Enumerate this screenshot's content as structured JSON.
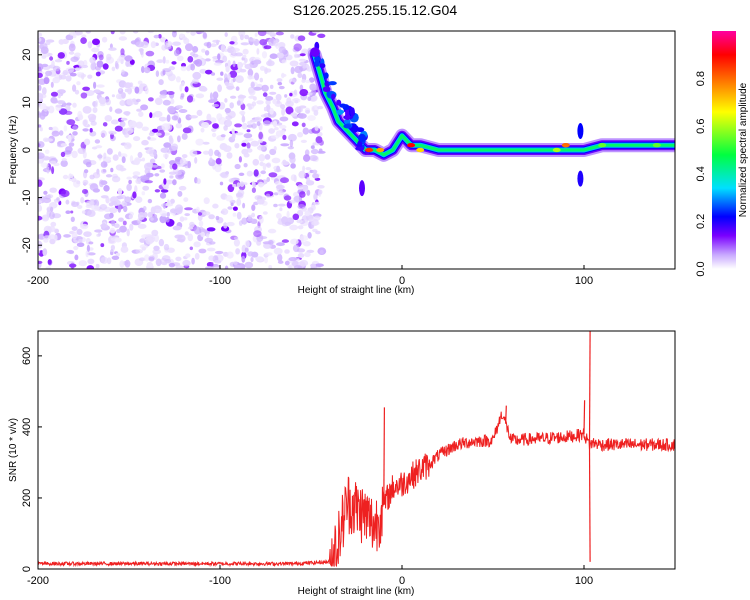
{
  "title": "S126.2025.255.15.12.G04",
  "chart_data": [
    {
      "type": "heatmap",
      "xlabel": "Height of straight line (km)",
      "ylabel": "Frequency (Hz)",
      "xlim": [
        -200,
        150
      ],
      "ylim": [
        -25,
        25
      ],
      "xticks": [
        "-200",
        "-100",
        "0",
        "100"
      ],
      "yticks": [
        "20",
        "10",
        "0",
        "-10",
        "-20"
      ],
      "colorbar": {
        "label": "Normalized spectral amplitude",
        "range": [
          0,
          1
        ],
        "ticks": [
          "0.0",
          "0.2",
          "0.4",
          "0.6",
          "0.8"
        ],
        "colors": [
          "#ffffff",
          "#c8a8ff",
          "#7a00ff",
          "#0000ff",
          "#00e0ff",
          "#00ff40",
          "#ffff00",
          "#ff8000",
          "#ff0000",
          "#ff00a0"
        ]
      },
      "noise_region_x": [
        -200,
        -48
      ],
      "signal_track": [
        [
          -48,
          20
        ],
        [
          -45,
          16
        ],
        [
          -42,
          12
        ],
        [
          -38,
          9
        ],
        [
          -35,
          6
        ],
        [
          -30,
          4
        ],
        [
          -25,
          2
        ],
        [
          -20,
          0
        ],
        [
          -15,
          0
        ],
        [
          -10,
          -1
        ],
        [
          -5,
          0
        ],
        [
          0,
          3
        ],
        [
          5,
          1
        ],
        [
          10,
          1
        ],
        [
          20,
          0
        ],
        [
          40,
          0
        ],
        [
          60,
          0
        ],
        [
          80,
          0
        ],
        [
          95,
          0
        ],
        [
          100,
          0
        ],
        [
          110,
          1
        ],
        [
          150,
          1
        ]
      ],
      "strong_points": [
        [
          -34,
          8,
          0.3
        ],
        [
          -30,
          5,
          0.25
        ],
        [
          -18,
          0,
          0.85
        ],
        [
          -12,
          0,
          0.75
        ],
        [
          5,
          1,
          0.9
        ],
        [
          10,
          0,
          0.7
        ],
        [
          85,
          0,
          0.6
        ],
        [
          90,
          1,
          0.8
        ],
        [
          110,
          1,
          0.55
        ],
        [
          140,
          1,
          0.55
        ]
      ]
    },
    {
      "type": "line",
      "xlabel": "Height of straight line (km)",
      "ylabel": "SNR (10 * v/v)",
      "xlim": [
        -200,
        150
      ],
      "ylim": [
        0,
        670
      ],
      "xticks": [
        "-200",
        "-100",
        "0",
        "100"
      ],
      "yticks": [
        "0",
        "200",
        "400",
        "600"
      ],
      "color": "#ee2020",
      "series": [
        {
          "name": "SNR",
          "x": [
            -200,
            -150,
            -100,
            -60,
            -40,
            -35,
            -30,
            -25,
            -20,
            -15,
            -10,
            -5,
            0,
            5,
            10,
            15,
            20,
            25,
            30,
            40,
            50,
            55,
            60,
            70,
            80,
            90,
            95,
            100,
            103,
            105,
            110,
            120,
            130,
            140,
            150
          ],
          "y": [
            15,
            15,
            15,
            15,
            20,
            80,
            190,
            170,
            150,
            120,
            180,
            230,
            240,
            260,
            280,
            295,
            320,
            335,
            350,
            360,
            362,
            440,
            362,
            365,
            368,
            372,
            375,
            380,
            350,
            355,
            350,
            350,
            350,
            350,
            350
          ],
          "spikes": [
            [
              -10,
              455
            ],
            [
              57,
              460
            ],
            [
              100,
              475
            ],
            [
              103,
              670
            ],
            [
              103,
              20
            ]
          ]
        }
      ]
    }
  ]
}
